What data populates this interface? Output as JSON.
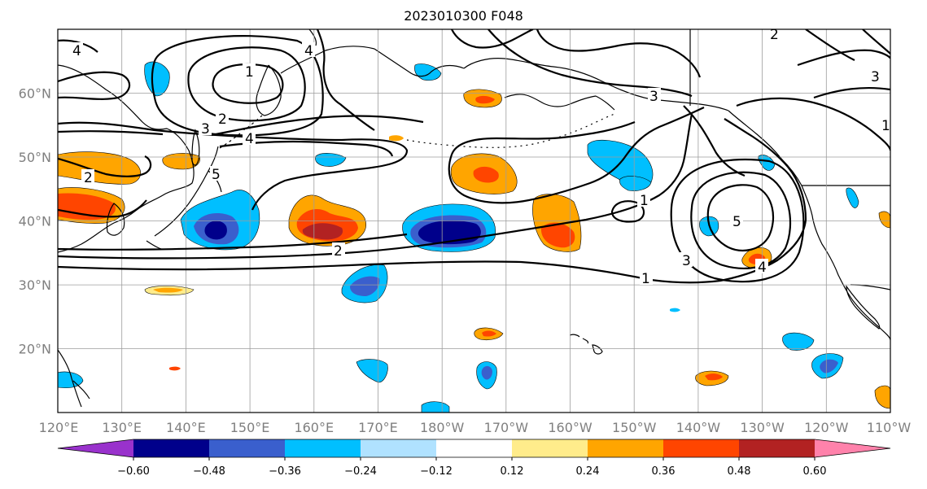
{
  "title": "2023010300 F048",
  "map": {
    "lon_range": [
      120,
      250
    ],
    "lat_range": [
      10,
      70
    ],
    "lat_ticks": [
      {
        "value": 20,
        "label": "20°N"
      },
      {
        "value": 30,
        "label": "30°N"
      },
      {
        "value": 40,
        "label": "40°N"
      },
      {
        "value": 50,
        "label": "50°N"
      },
      {
        "value": 60,
        "label": "60°N"
      }
    ],
    "lon_ticks": [
      {
        "value": 120,
        "label": "120°E"
      },
      {
        "value": 130,
        "label": "130°E"
      },
      {
        "value": 140,
        "label": "140°E"
      },
      {
        "value": 150,
        "label": "150°E"
      },
      {
        "value": 160,
        "label": "160°E"
      },
      {
        "value": 170,
        "label": "170°E"
      },
      {
        "value": 180,
        "label": "180°W"
      },
      {
        "value": 190,
        "label": "170°W"
      },
      {
        "value": 200,
        "label": "160°W"
      },
      {
        "value": 210,
        "label": "150°W"
      },
      {
        "value": 220,
        "label": "140°W"
      },
      {
        "value": 230,
        "label": "130°W"
      },
      {
        "value": 240,
        "label": "120°W"
      },
      {
        "value": 250,
        "label": "110°W"
      }
    ],
    "grid": true
  },
  "colorbar": {
    "ticks": [
      "−0.60",
      "−0.48",
      "−0.36",
      "−0.24",
      "−0.12",
      "0.12",
      "0.24",
      "0.36",
      "0.48",
      "0.60"
    ],
    "colors": [
      "#9932cc",
      "#00008b",
      "#3a5fcd",
      "#00bfff",
      "#b0e2ff",
      "#ffffff",
      "#ffec8b",
      "#ffa500",
      "#ff4500",
      "#b22222",
      "#ff82ab"
    ]
  },
  "contour_labels": [
    "1",
    "2",
    "3",
    "4",
    "5"
  ]
}
